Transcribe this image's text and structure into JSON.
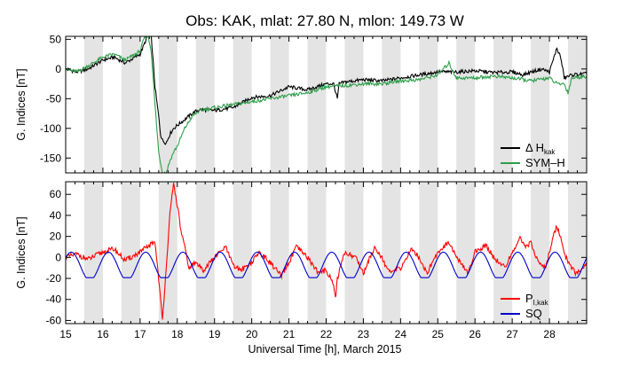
{
  "chart_data": {
    "title": "Obs: KAK, mlat:   27.80 N,    mlon:  149.73 W",
    "xlabel": "Universal Time [h], March 2015",
    "x_range": [
      15,
      29
    ],
    "x_ticks": [
      "15",
      "16",
      "17",
      "18",
      "19",
      "20",
      "21",
      "22",
      "23",
      "24",
      "25",
      "26",
      "27",
      "28"
    ],
    "shading": "grey bands for 12-24 UT of each day",
    "panels": [
      {
        "type": "line",
        "ylabel": "G. Indices [nT]",
        "ylim": [
          -175,
          55
        ],
        "yticks": [
          50,
          0,
          -50,
          -100,
          -150
        ],
        "legend_position": "bottom-right",
        "series": [
          {
            "name": "Δ H",
            "name_sub": "kak",
            "color": "#000000",
            "x": [
              15.0,
              15.3,
              15.6,
              16.0,
              16.3,
              16.6,
              17.0,
              17.1,
              17.2,
              17.3,
              17.4,
              17.5,
              17.55,
              17.6,
              17.7,
              17.8,
              17.9,
              18.0,
              18.2,
              18.4,
              18.6,
              19.0,
              19.5,
              20.0,
              20.5,
              21.0,
              21.5,
              22.0,
              22.2,
              22.3,
              22.35,
              22.5,
              23.0,
              23.5,
              24.0,
              24.5,
              25.0,
              25.5,
              26.0,
              26.5,
              27.0,
              27.3,
              27.5,
              27.8,
              28.0,
              28.1,
              28.2,
              28.3,
              28.4,
              28.6,
              29.0
            ],
            "values": [
              0,
              -5,
              0,
              15,
              20,
              10,
              25,
              40,
              55,
              55,
              -30,
              -80,
              -110,
              -120,
              -125,
              -110,
              -100,
              -95,
              -85,
              -75,
              -68,
              -70,
              -65,
              -48,
              -45,
              -30,
              -35,
              -25,
              -25,
              -50,
              -25,
              -22,
              -18,
              -20,
              -15,
              -10,
              -5,
              -5,
              -3,
              -6,
              -5,
              -10,
              -5,
              0,
              -5,
              15,
              35,
              20,
              -15,
              -10,
              -8
            ]
          },
          {
            "name": "SYM–H",
            "color": "#2e9e4a",
            "x": [
              15.0,
              15.3,
              15.6,
              16.0,
              16.3,
              16.6,
              17.0,
              17.1,
              17.2,
              17.3,
              17.4,
              17.5,
              17.6,
              17.7,
              17.8,
              17.9,
              18.0,
              18.2,
              18.4,
              18.6,
              19.0,
              19.5,
              20.0,
              20.5,
              21.0,
              21.5,
              22.0,
              22.5,
              23.0,
              23.5,
              24.0,
              24.5,
              25.0,
              25.3,
              25.5,
              26.0,
              26.5,
              27.0,
              27.5,
              28.0,
              28.2,
              28.4,
              28.5,
              28.6,
              29.0
            ],
            "values": [
              0,
              -5,
              5,
              20,
              25,
              15,
              30,
              50,
              60,
              30,
              -60,
              -140,
              -175,
              -175,
              -155,
              -140,
              -130,
              -100,
              -80,
              -70,
              -65,
              -60,
              -55,
              -50,
              -45,
              -40,
              -30,
              -28,
              -25,
              -25,
              -20,
              -18,
              -10,
              10,
              -15,
              -15,
              -12,
              -15,
              -20,
              -15,
              -25,
              -25,
              -40,
              -15,
              -12
            ]
          }
        ]
      },
      {
        "type": "line",
        "ylabel": "G. Indices [nT]",
        "ylim": [
          -63,
          72
        ],
        "yticks": [
          60,
          40,
          20,
          0,
          -20,
          -40,
          -60
        ],
        "legend_position": "bottom-right",
        "series": [
          {
            "name": "P",
            "name_sub": "I,kak",
            "color": "#ff0000",
            "x": [
              15.0,
              15.3,
              15.6,
              16.0,
              16.3,
              16.6,
              17.0,
              17.2,
              17.4,
              17.5,
              17.55,
              17.6,
              17.7,
              17.8,
              17.9,
              18.0,
              18.1,
              18.2,
              18.3,
              18.5,
              18.7,
              19.0,
              19.3,
              19.5,
              19.7,
              20.0,
              20.2,
              20.5,
              20.8,
              21.0,
              21.2,
              21.5,
              21.8,
              22.0,
              22.2,
              22.25,
              22.3,
              22.5,
              22.8,
              23.0,
              23.3,
              23.5,
              23.7,
              24.0,
              24.3,
              24.5,
              24.7,
              25.0,
              25.3,
              25.5,
              25.8,
              26.0,
              26.3,
              26.5,
              26.8,
              27.0,
              27.2,
              27.4,
              27.5,
              27.7,
              27.9,
              28.0,
              28.1,
              28.2,
              28.3,
              28.4,
              28.5,
              28.7,
              28.9,
              29.0
            ],
            "values": [
              0,
              3,
              -2,
              5,
              8,
              -3,
              5,
              10,
              15,
              -20,
              -40,
              -60,
              -10,
              40,
              70,
              50,
              25,
              10,
              -10,
              -5,
              -12,
              0,
              10,
              -8,
              -12,
              -5,
              5,
              -5,
              -18,
              -5,
              10,
              0,
              -15,
              -12,
              -25,
              -40,
              -20,
              5,
              0,
              -15,
              10,
              0,
              -15,
              -10,
              8,
              0,
              -15,
              5,
              15,
              0,
              -15,
              5,
              12,
              0,
              -10,
              5,
              18,
              10,
              15,
              -5,
              -10,
              5,
              20,
              30,
              20,
              5,
              -5,
              -15,
              -10,
              -8
            ]
          },
          {
            "name": "SQ",
            "color": "#0000cc",
            "amplitude_max": 5,
            "amplitude_min": -22,
            "period_days": 1
          }
        ]
      }
    ]
  }
}
